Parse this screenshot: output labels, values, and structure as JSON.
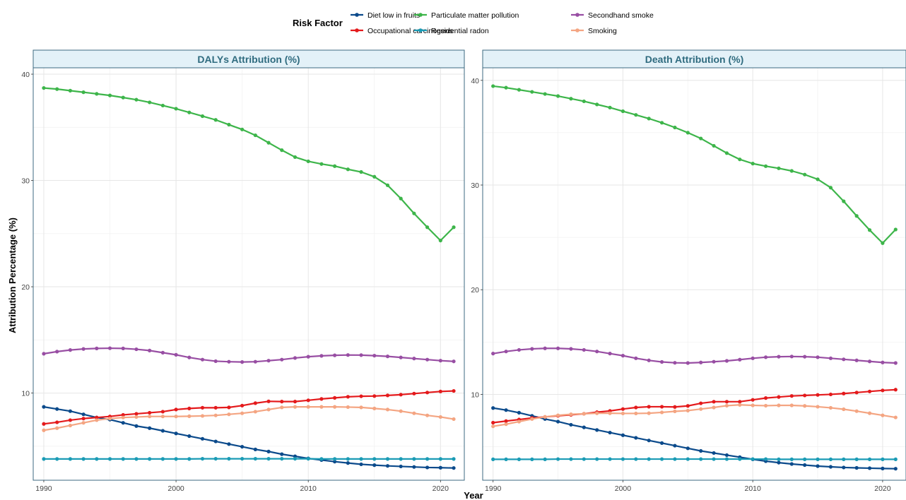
{
  "legend": {
    "title": "Risk Factor",
    "items": [
      {
        "name": "Diet low in fruits",
        "color": "#0B4A8B"
      },
      {
        "name": "Occupational carcinogens",
        "color": "#E41A1C"
      },
      {
        "name": "Particulate matter pollution",
        "color": "#3DB54A"
      },
      {
        "name": "Residential radon",
        "color": "#1A9BB5"
      },
      {
        "name": "Secondhand smoke",
        "color": "#984EA3"
      },
      {
        "name": "Smoking",
        "color": "#F4A582"
      }
    ]
  },
  "axes": {
    "xlabel": "Year",
    "ylabel": "Attribution Percentage (%)"
  },
  "chart_data": [
    {
      "type": "line",
      "title": "DALYs Attribution (%)",
      "xlabel": "Year",
      "ylabel": "Attribution Percentage (%)",
      "x": [
        1990,
        1991,
        1992,
        1993,
        1994,
        1995,
        1996,
        1997,
        1998,
        1999,
        2000,
        2001,
        2002,
        2003,
        2004,
        2005,
        2006,
        2007,
        2008,
        2009,
        2010,
        2011,
        2012,
        2013,
        2014,
        2015,
        2016,
        2017,
        2018,
        2019,
        2020,
        2021
      ],
      "xticks": [
        1990,
        2000,
        2010,
        2020
      ],
      "yticks": [
        10,
        20,
        30,
        40
      ],
      "xlim": [
        1989.2,
        2021.8
      ],
      "ylim": [
        1.8,
        40.6
      ],
      "grid": true,
      "series": [
        {
          "name": "Diet low in fruits",
          "color": "#0B4A8B",
          "values": [
            8.7,
            8.5,
            8.3,
            8.0,
            7.7,
            7.5,
            7.2,
            6.9,
            6.7,
            6.45,
            6.2,
            5.95,
            5.7,
            5.45,
            5.2,
            4.95,
            4.7,
            4.5,
            4.25,
            4.05,
            3.85,
            3.7,
            3.55,
            3.42,
            3.3,
            3.22,
            3.15,
            3.1,
            3.05,
            3.0,
            2.98,
            2.95
          ]
        },
        {
          "name": "Occupational carcinogens",
          "color": "#E41A1C",
          "values": [
            7.1,
            7.25,
            7.45,
            7.6,
            7.7,
            7.8,
            7.95,
            8.05,
            8.15,
            8.25,
            8.45,
            8.55,
            8.62,
            8.62,
            8.65,
            8.82,
            9.05,
            9.22,
            9.2,
            9.2,
            9.32,
            9.45,
            9.55,
            9.65,
            9.7,
            9.72,
            9.78,
            9.85,
            9.95,
            10.05,
            10.15,
            10.2
          ]
        },
        {
          "name": "Particulate matter pollution",
          "color": "#3DB54A",
          "values": [
            38.7,
            38.6,
            38.45,
            38.3,
            38.15,
            38.0,
            37.8,
            37.6,
            37.35,
            37.05,
            36.75,
            36.4,
            36.05,
            35.7,
            35.25,
            34.8,
            34.25,
            33.55,
            32.85,
            32.2,
            31.8,
            31.55,
            31.35,
            31.05,
            30.8,
            30.35,
            29.55,
            28.3,
            26.9,
            25.6,
            24.35,
            25.6
          ]
        },
        {
          "name": "Residential radon",
          "color": "#1A9BB5",
          "values": [
            3.8,
            3.8,
            3.8,
            3.8,
            3.8,
            3.8,
            3.8,
            3.8,
            3.8,
            3.8,
            3.8,
            3.8,
            3.82,
            3.82,
            3.82,
            3.82,
            3.82,
            3.82,
            3.82,
            3.82,
            3.82,
            3.8,
            3.8,
            3.8,
            3.8,
            3.8,
            3.8,
            3.8,
            3.8,
            3.8,
            3.8,
            3.8
          ]
        },
        {
          "name": "Secondhand smoke",
          "color": "#984EA3",
          "values": [
            13.7,
            13.9,
            14.05,
            14.15,
            14.2,
            14.22,
            14.2,
            14.12,
            14.0,
            13.8,
            13.6,
            13.35,
            13.15,
            13.0,
            12.95,
            12.92,
            12.95,
            13.05,
            13.15,
            13.3,
            13.42,
            13.5,
            13.55,
            13.58,
            13.57,
            13.52,
            13.45,
            13.35,
            13.25,
            13.15,
            13.05,
            12.98
          ]
        },
        {
          "name": "Smoking",
          "color": "#F4A582",
          "values": [
            6.5,
            6.7,
            6.95,
            7.2,
            7.45,
            7.6,
            7.7,
            7.75,
            7.8,
            7.8,
            7.8,
            7.82,
            7.85,
            7.9,
            8.0,
            8.1,
            8.25,
            8.45,
            8.65,
            8.7,
            8.7,
            8.7,
            8.7,
            8.68,
            8.65,
            8.55,
            8.45,
            8.3,
            8.1,
            7.9,
            7.75,
            7.55
          ]
        }
      ]
    },
    {
      "type": "line",
      "title": "Death Attribution (%)",
      "xlabel": "Year",
      "ylabel": "Attribution Percentage (%)",
      "x": [
        1990,
        1991,
        1992,
        1993,
        1994,
        1995,
        1996,
        1997,
        1998,
        1999,
        2000,
        2001,
        2002,
        2003,
        2004,
        2005,
        2006,
        2007,
        2008,
        2009,
        2010,
        2011,
        2012,
        2013,
        2014,
        2015,
        2016,
        2017,
        2018,
        2019,
        2020,
        2021
      ],
      "xticks": [
        1990,
        2000,
        2010,
        2020
      ],
      "yticks": [
        10,
        20,
        30,
        40
      ],
      "xlim": [
        1989.2,
        2021.8
      ],
      "ylim": [
        1.8,
        41.2
      ],
      "grid": true,
      "series": [
        {
          "name": "Diet low in fruits",
          "color": "#0B4A8B",
          "values": [
            8.7,
            8.5,
            8.25,
            7.95,
            7.65,
            7.4,
            7.1,
            6.85,
            6.6,
            6.35,
            6.1,
            5.85,
            5.6,
            5.35,
            5.1,
            4.85,
            4.6,
            4.4,
            4.2,
            4.0,
            3.8,
            3.62,
            3.48,
            3.35,
            3.25,
            3.15,
            3.08,
            3.02,
            2.98,
            2.95,
            2.92,
            2.9
          ]
        },
        {
          "name": "Occupational carcinogens",
          "color": "#E41A1C",
          "values": [
            7.3,
            7.45,
            7.6,
            7.75,
            7.85,
            7.95,
            8.05,
            8.15,
            8.3,
            8.42,
            8.6,
            8.75,
            8.82,
            8.82,
            8.8,
            8.9,
            9.15,
            9.3,
            9.3,
            9.3,
            9.48,
            9.65,
            9.75,
            9.85,
            9.9,
            9.95,
            10.0,
            10.08,
            10.18,
            10.28,
            10.38,
            10.45
          ]
        },
        {
          "name": "Particulate matter pollution",
          "color": "#3DB54A",
          "values": [
            39.45,
            39.3,
            39.1,
            38.9,
            38.7,
            38.5,
            38.25,
            38.0,
            37.7,
            37.4,
            37.05,
            36.7,
            36.35,
            35.95,
            35.5,
            35.0,
            34.45,
            33.75,
            33.05,
            32.45,
            32.05,
            31.8,
            31.6,
            31.35,
            31.0,
            30.55,
            29.75,
            28.45,
            27.05,
            25.7,
            24.45,
            25.75
          ]
        },
        {
          "name": "Residential radon",
          "color": "#1A9BB5",
          "values": [
            3.8,
            3.8,
            3.8,
            3.8,
            3.8,
            3.82,
            3.82,
            3.82,
            3.82,
            3.82,
            3.82,
            3.82,
            3.82,
            3.82,
            3.82,
            3.82,
            3.82,
            3.82,
            3.82,
            3.82,
            3.82,
            3.82,
            3.8,
            3.8,
            3.8,
            3.8,
            3.8,
            3.8,
            3.8,
            3.8,
            3.8,
            3.8
          ]
        },
        {
          "name": "Secondhand smoke",
          "color": "#984EA3",
          "values": [
            13.9,
            14.1,
            14.25,
            14.35,
            14.4,
            14.4,
            14.35,
            14.25,
            14.1,
            13.9,
            13.7,
            13.45,
            13.25,
            13.1,
            13.02,
            13.0,
            13.05,
            13.12,
            13.2,
            13.32,
            13.45,
            13.55,
            13.6,
            13.62,
            13.6,
            13.55,
            13.45,
            13.35,
            13.25,
            13.15,
            13.05,
            13.0
          ]
        },
        {
          "name": "Smoking",
          "color": "#F4A582",
          "values": [
            6.95,
            7.15,
            7.4,
            7.65,
            7.85,
            8.0,
            8.1,
            8.15,
            8.2,
            8.2,
            8.18,
            8.18,
            8.2,
            8.28,
            8.38,
            8.45,
            8.6,
            8.75,
            8.92,
            9.0,
            8.95,
            8.92,
            8.95,
            8.95,
            8.9,
            8.82,
            8.72,
            8.58,
            8.4,
            8.2,
            8.0,
            7.8
          ]
        }
      ]
    }
  ]
}
